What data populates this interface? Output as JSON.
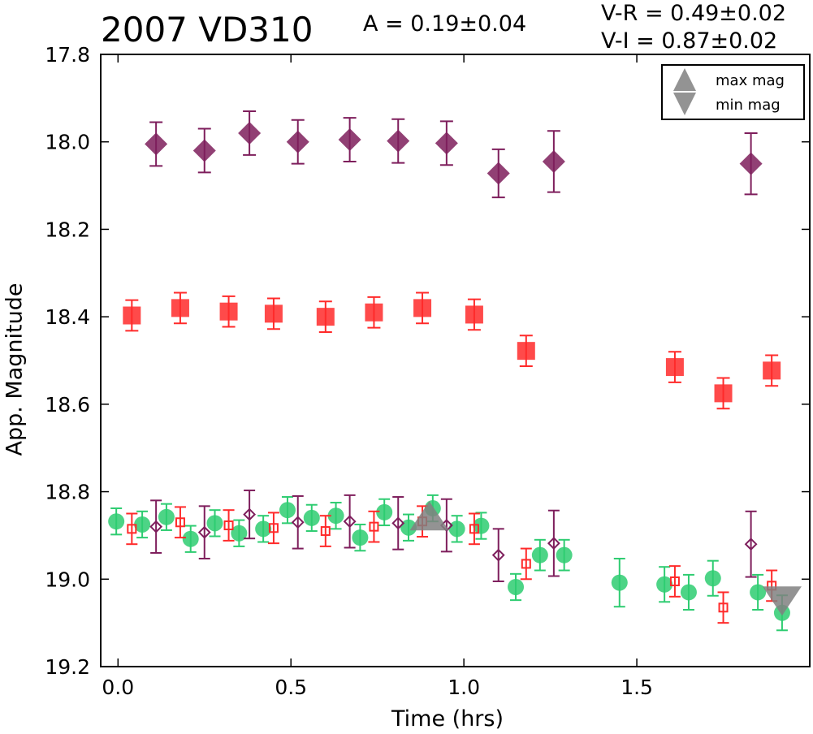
{
  "header": {
    "title": "2007 VD310",
    "amplitude_text": "A  = 0.19±0.04",
    "vr_text": "V-R = 0.49±0.02",
    "vi_text": "V-I  = 0.87±0.02"
  },
  "chart_data": {
    "type": "scatter",
    "title": "2007 VD310",
    "xlabel": "Time (hrs)",
    "ylabel": "App. Magnitude",
    "xlim": [
      -0.05,
      2.0
    ],
    "ylim": [
      19.2,
      17.8
    ],
    "y_inverted": true,
    "grid": false,
    "x_ticks": [
      "0.0",
      "0.5",
      "1.0",
      "1.5"
    ],
    "x_tick_values": [
      0.0,
      0.5,
      1.0,
      1.5
    ],
    "y_ticks": [
      "17.8",
      "18.0",
      "18.2",
      "18.4",
      "18.6",
      "18.8",
      "19.0",
      "19.2"
    ],
    "y_tick_values": [
      17.8,
      18.0,
      18.2,
      18.4,
      18.6,
      18.8,
      19.0,
      19.2
    ],
    "legend": {
      "placement": "top-right",
      "entries": [
        {
          "label": "max mag",
          "marker": "triangle-up",
          "color": "#808080"
        },
        {
          "label": "min mag",
          "marker": "triangle-down",
          "color": "#808080"
        }
      ]
    },
    "series": [
      {
        "id": "i_band_offset",
        "marker": "diamond",
        "filled": true,
        "color": "#7e1e5c",
        "x": [
          0.11,
          0.25,
          0.38,
          0.52,
          0.67,
          0.81,
          0.95,
          1.1,
          1.26,
          1.83
        ],
        "y": [
          18.005,
          18.02,
          17.98,
          18.0,
          17.995,
          17.998,
          18.003,
          18.072,
          18.045,
          18.05
        ],
        "err": [
          0.05,
          0.05,
          0.05,
          0.05,
          0.05,
          0.05,
          0.05,
          0.055,
          0.07,
          0.07
        ]
      },
      {
        "id": "r_band_offset",
        "marker": "square",
        "filled": true,
        "color": "#ff2a2a",
        "x": [
          0.04,
          0.18,
          0.32,
          0.45,
          0.6,
          0.74,
          0.88,
          1.03,
          1.18,
          1.61,
          1.75,
          1.89
        ],
        "y": [
          18.397,
          18.38,
          18.388,
          18.393,
          18.4,
          18.39,
          18.38,
          18.395,
          18.478,
          18.515,
          18.575,
          18.523
        ],
        "err": [
          0.035,
          0.035,
          0.035,
          0.035,
          0.035,
          0.035,
          0.035,
          0.035,
          0.035,
          0.035,
          0.035,
          0.035
        ]
      },
      {
        "id": "v_band",
        "marker": "circle",
        "filled": true,
        "color": "#2ecc71",
        "x": [
          -0.005,
          0.07,
          0.14,
          0.21,
          0.28,
          0.35,
          0.42,
          0.49,
          0.56,
          0.63,
          0.7,
          0.77,
          0.84,
          0.91,
          0.98,
          1.05,
          1.15,
          1.22,
          1.29,
          1.45,
          1.58,
          1.65,
          1.72,
          1.85,
          1.92
        ],
        "y": [
          18.868,
          18.875,
          18.858,
          18.908,
          18.872,
          18.895,
          18.885,
          18.842,
          18.86,
          18.855,
          18.905,
          18.847,
          18.882,
          18.838,
          18.885,
          18.878,
          19.018,
          18.945,
          18.945,
          19.008,
          19.012,
          19.03,
          18.998,
          19.03,
          19.077
        ],
        "err": [
          0.03,
          0.03,
          0.03,
          0.03,
          0.03,
          0.03,
          0.03,
          0.03,
          0.03,
          0.03,
          0.03,
          0.03,
          0.03,
          0.03,
          0.03,
          0.03,
          0.03,
          0.035,
          0.035,
          0.055,
          0.04,
          0.04,
          0.04,
          0.04,
          0.04
        ]
      },
      {
        "id": "r_band",
        "marker": "square",
        "filled": false,
        "color": "#ff2a2a",
        "x": [
          0.04,
          0.18,
          0.32,
          0.45,
          0.6,
          0.74,
          0.88,
          1.03,
          1.18,
          1.61,
          1.75,
          1.89
        ],
        "y": [
          18.885,
          18.87,
          18.877,
          18.883,
          18.89,
          18.88,
          18.868,
          18.885,
          18.965,
          19.005,
          19.065,
          19.015
        ],
        "err": [
          0.035,
          0.035,
          0.035,
          0.035,
          0.035,
          0.035,
          0.035,
          0.035,
          0.035,
          0.035,
          0.035,
          0.035
        ]
      },
      {
        "id": "i_band",
        "marker": "diamond",
        "filled": false,
        "color": "#7e1e5c",
        "x": [
          0.11,
          0.25,
          0.38,
          0.52,
          0.67,
          0.81,
          0.95,
          1.1,
          1.26,
          1.83
        ],
        "y": [
          18.88,
          18.893,
          18.852,
          18.87,
          18.868,
          18.872,
          18.877,
          18.945,
          18.918,
          18.92
        ],
        "err": [
          0.06,
          0.06,
          0.055,
          0.06,
          0.06,
          0.06,
          0.06,
          0.06,
          0.075,
          0.075
        ]
      },
      {
        "id": "extrema",
        "marker": "triangle",
        "filled": true,
        "color": "#808080",
        "points": [
          {
            "label": "max mag",
            "x": 0.9,
            "y": 18.855,
            "direction": "up"
          },
          {
            "label": "min mag",
            "x": 1.92,
            "y": 19.05,
            "direction": "down"
          }
        ]
      }
    ]
  }
}
